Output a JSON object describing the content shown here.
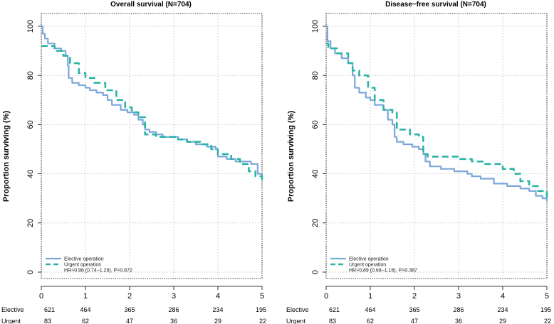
{
  "chart_data": [
    {
      "type": "line",
      "title": "Overall survival (N=704)",
      "xlabel": "",
      "ylabel": "Proportion surviving (%)",
      "xlim": [
        0,
        5
      ],
      "ylim": [
        0,
        100
      ],
      "xticks": [
        "0",
        "1",
        "2",
        "3",
        "4",
        "5"
      ],
      "yticks": [
        "0",
        "20",
        "40",
        "60",
        "80",
        "100"
      ],
      "grid": true,
      "legend_position": "bottom-left",
      "series": [
        {
          "name": "Elective operation",
          "style": "solid",
          "color": "#7ba7d9",
          "x": [
            0,
            0.03,
            0.08,
            0.15,
            0.3,
            0.45,
            0.55,
            0.6,
            0.62,
            0.7,
            0.85,
            1.0,
            1.1,
            1.25,
            1.4,
            1.5,
            1.6,
            1.8,
            1.95,
            2.1,
            2.2,
            2.3,
            2.35,
            2.45,
            2.6,
            2.75,
            2.9,
            3.1,
            3.3,
            3.5,
            3.75,
            3.95,
            4.0,
            4.2,
            4.4,
            4.6,
            4.75,
            4.9,
            5.0
          ],
          "y": [
            100,
            97,
            95,
            93,
            91,
            90,
            88,
            84,
            79,
            77,
            76,
            75,
            74,
            73,
            72,
            70,
            68,
            66,
            65,
            64,
            62,
            60,
            58,
            57,
            56,
            55,
            55,
            54,
            53,
            52,
            51,
            50,
            47,
            46,
            45,
            45,
            44,
            40,
            39
          ]
        },
        {
          "name": "Urgent operation",
          "style": "dashed",
          "color": "#2ab3a6",
          "x": [
            0,
            0.05,
            0.3,
            0.5,
            0.65,
            0.85,
            1.0,
            1.2,
            1.45,
            1.7,
            1.9,
            2.05,
            2.2,
            2.35,
            2.6,
            2.9,
            3.1,
            3.3,
            3.6,
            3.85,
            4.0,
            4.3,
            4.5,
            4.7,
            4.85,
            5.0
          ],
          "y": [
            92,
            92,
            90,
            88,
            85,
            81,
            79,
            77,
            74,
            70,
            67,
            65,
            63,
            56,
            55,
            55,
            54,
            53,
            52,
            50,
            48,
            46,
            44,
            41,
            39,
            36
          ]
        }
      ],
      "annotation": "HR=0.98 (0.74−1.29), P=0.872",
      "risk_table": {
        "x": [
          0,
          1,
          2,
          3,
          4,
          5
        ],
        "rows": [
          {
            "label": "Elective",
            "values": [
              "621",
              "464",
              "365",
              "286",
              "234",
              "195"
            ]
          },
          {
            "label": "Urgent",
            "values": [
              "83",
              "62",
              "47",
              "36",
              "29",
              "22"
            ]
          }
        ]
      }
    },
    {
      "type": "line",
      "title": "Disease−free survival (N=704)",
      "xlabel": "",
      "ylabel": "Proportion surviving (%)",
      "xlim": [
        0,
        5
      ],
      "ylim": [
        0,
        100
      ],
      "xticks": [
        "0",
        "1",
        "2",
        "3",
        "4",
        "5"
      ],
      "yticks": [
        "0",
        "20",
        "40",
        "60",
        "80",
        "100"
      ],
      "grid": true,
      "legend_position": "bottom-left",
      "series": [
        {
          "name": "Elective operation",
          "style": "solid",
          "color": "#7ba7d9",
          "x": [
            0,
            0.03,
            0.1,
            0.2,
            0.35,
            0.5,
            0.6,
            0.65,
            0.75,
            0.9,
            1.0,
            1.1,
            1.3,
            1.4,
            1.5,
            1.55,
            1.6,
            1.75,
            1.95,
            2.1,
            2.2,
            2.25,
            2.35,
            2.6,
            2.9,
            3.2,
            3.3,
            3.5,
            3.8,
            4.1,
            4.4,
            4.6,
            4.75,
            4.9,
            5.0
          ],
          "y": [
            100,
            94,
            91,
            89,
            87,
            85,
            80,
            75,
            73,
            71,
            70,
            68,
            66,
            62,
            60,
            55,
            53,
            52,
            51,
            50,
            48,
            45,
            43,
            42,
            41,
            40,
            39,
            38,
            36,
            35,
            34,
            33,
            31,
            30,
            29
          ]
        },
        {
          "name": "Urgent operation",
          "style": "dashed",
          "color": "#2ab3a6",
          "x": [
            0,
            0.05,
            0.25,
            0.5,
            0.6,
            0.75,
            0.95,
            1.1,
            1.3,
            1.5,
            1.6,
            1.9,
            2.1,
            2.2,
            2.3,
            2.6,
            3.0,
            3.3,
            3.6,
            4.0,
            4.25,
            4.4,
            4.6,
            4.8,
            5.0
          ],
          "y": [
            93,
            91,
            89,
            85,
            82,
            80,
            75,
            70,
            66,
            65,
            58,
            56,
            55,
            48,
            47,
            47,
            46,
            45,
            44,
            42,
            40,
            37,
            35,
            33,
            30
          ]
        }
      ],
      "annotation": "HR=0.89 (0.68−1.16), P=0.387",
      "risk_table": {
        "x": [
          0,
          1,
          2,
          3,
          4,
          5
        ],
        "rows": [
          {
            "label": "Elective",
            "values": [
              "621",
              "464",
              "365",
              "286",
              "234",
              "195"
            ]
          },
          {
            "label": "Urgent",
            "values": [
              "83",
              "62",
              "47",
              "36",
              "29",
              "22"
            ]
          }
        ]
      }
    }
  ]
}
